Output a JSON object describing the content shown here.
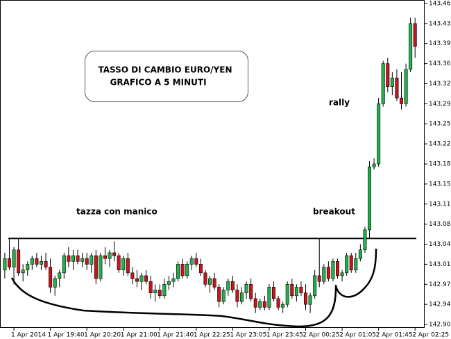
{
  "chart_data": {
    "type": "candlestick",
    "title": "TASSO DI CAMBIO EURO/YEN",
    "subtitle": "GRAFICO A 5 MINUTI",
    "annotations": [
      "rally",
      "tazza con manico",
      "breakout"
    ],
    "categories": [
      null,
      null,
      "1 Apr 2014",
      null,
      null,
      null,
      null,
      null,
      null,
      null,
      "1 Apr 19:40",
      null,
      null,
      null,
      null,
      null,
      null,
      null,
      "1 Apr 20:20",
      null,
      null,
      null,
      null,
      null,
      null,
      null,
      "1 Apr 21:00",
      null,
      null,
      null,
      null,
      null,
      null,
      null,
      "1 Apr 21:40",
      null,
      null,
      null,
      null,
      null,
      null,
      null,
      "1 Apr 22:25",
      null,
      null,
      null,
      null,
      null,
      null,
      null,
      "1 Apr 23:05",
      null,
      null,
      null,
      null,
      null,
      null,
      null,
      "1 Apr 23:45",
      null,
      null,
      null,
      null,
      null,
      null,
      null,
      "2 Apr 00:25",
      null,
      null,
      null,
      null,
      null,
      null,
      null,
      "2 Apr 01:05",
      null,
      null,
      null,
      null,
      null,
      null,
      null,
      "2 Apr 01:45",
      null,
      null,
      null,
      null,
      null,
      null,
      null,
      "2 Apr 02:25"
    ],
    "open": [
      143.0,
      143.02,
      143.005,
      143.035,
      142.995,
      143.0,
      143.01,
      143.02,
      143.01,
      143.015,
      143.005,
      142.97,
      142.985,
      142.995,
      143.025,
      143.015,
      143.025,
      143.015,
      143.02,
      143.01,
      143.025,
      142.985,
      143.025,
      143.02,
      143.03,
      143.025,
      143.0,
      143.02,
      142.995,
      142.985,
      142.98,
      142.99,
      142.98,
      142.96,
      142.965,
      142.955,
      142.975,
      142.98,
      142.985,
      143.01,
      142.99,
      143.01,
      143.02,
      143.01,
      142.995,
      142.975,
      142.985,
      142.97,
      142.945,
      142.965,
      142.98,
      142.965,
      142.945,
      142.96,
      142.975,
      142.95,
      142.935,
      142.945,
      142.935,
      142.97,
      142.95,
      142.935,
      142.94,
      142.975,
      142.955,
      142.97,
      142.96,
      142.94,
      142.955,
      142.99,
      142.98,
      143.005,
      142.985,
      143.015,
      142.99,
      142.995,
      143.025,
      143.0,
      143.02,
      143.035,
      143.07,
      143.18,
      143.185,
      143.29,
      143.36,
      143.32,
      143.335,
      143.3,
      143.29,
      143.35,
      143.43
    ],
    "high": [
      143.03,
      143.055,
      143.04,
      143.055,
      143.01,
      143.015,
      143.025,
      143.03,
      143.025,
      143.03,
      143.02,
      142.99,
      143.0,
      143.03,
      143.04,
      143.035,
      143.035,
      143.03,
      143.03,
      143.03,
      143.035,
      143.03,
      143.04,
      143.035,
      143.05,
      143.03,
      143.025,
      143.03,
      143.005,
      143.0,
      142.995,
      143.0,
      142.99,
      142.975,
      142.975,
      142.985,
      142.99,
      142.995,
      143.015,
      143.02,
      143.015,
      143.025,
      143.03,
      143.02,
      143.0,
      142.99,
      142.995,
      142.975,
      142.97,
      142.985,
      142.99,
      142.975,
      142.97,
      142.98,
      142.985,
      142.96,
      142.95,
      142.955,
      142.975,
      142.98,
      142.955,
      142.945,
      142.98,
      142.985,
      142.975,
      142.98,
      142.975,
      142.96,
      143.0,
      143.055,
      143.01,
      143.015,
      143.02,
      143.02,
      143.0,
      143.03,
      143.03,
      143.03,
      143.045,
      143.075,
      143.19,
      143.195,
      143.3,
      143.365,
      143.37,
      143.345,
      143.35,
      143.345,
      143.36,
      143.44,
      143.44
    ],
    "low": [
      142.985,
      143.0,
      142.975,
      142.99,
      142.98,
      142.99,
      143.0,
      143.005,
      143.0,
      143.0,
      142.96,
      142.955,
      142.97,
      142.985,
      143.005,
      143.0,
      143.01,
      143.005,
      143.0,
      142.995,
      142.975,
      142.98,
      143.01,
      143.005,
      143.015,
      142.995,
      142.99,
      142.99,
      142.975,
      142.97,
      142.965,
      142.975,
      142.95,
      142.945,
      142.95,
      142.95,
      142.965,
      142.97,
      142.98,
      142.985,
      142.985,
      143.0,
      143.005,
      142.99,
      142.97,
      142.96,
      142.965,
      142.935,
      142.94,
      142.955,
      142.96,
      142.935,
      142.94,
      142.95,
      142.945,
      142.925,
      142.93,
      142.93,
      142.93,
      142.945,
      142.93,
      142.925,
      142.935,
      142.95,
      142.945,
      142.955,
      142.93,
      142.925,
      142.95,
      142.97,
      142.975,
      142.98,
      142.98,
      142.985,
      142.98,
      142.99,
      142.995,
      142.995,
      143.015,
      143.03,
      143.055,
      143.175,
      143.18,
      143.285,
      143.31,
      143.305,
      143.295,
      143.28,
      143.285,
      143.345,
      143.37
    ],
    "close": [
      143.02,
      143.005,
      143.035,
      142.995,
      143.0,
      143.01,
      143.02,
      143.01,
      143.015,
      143.005,
      142.97,
      142.985,
      142.995,
      143.025,
      143.015,
      143.025,
      143.015,
      143.02,
      143.01,
      143.025,
      142.985,
      143.025,
      143.02,
      143.03,
      143.025,
      143.0,
      143.02,
      142.995,
      142.985,
      142.98,
      142.99,
      142.98,
      142.96,
      142.965,
      142.955,
      142.975,
      142.98,
      142.985,
      143.01,
      142.99,
      143.01,
      143.02,
      143.01,
      142.995,
      142.975,
      142.985,
      142.97,
      142.945,
      142.965,
      142.98,
      142.965,
      142.945,
      142.96,
      142.975,
      142.95,
      142.935,
      142.945,
      142.935,
      142.97,
      142.95,
      142.935,
      142.94,
      142.975,
      142.955,
      142.97,
      142.96,
      142.94,
      142.955,
      142.99,
      142.98,
      143.005,
      142.985,
      143.015,
      142.99,
      142.995,
      143.025,
      143.0,
      143.02,
      143.035,
      143.07,
      143.18,
      143.185,
      143.29,
      143.36,
      143.32,
      143.335,
      143.3,
      143.29,
      143.35,
      143.43,
      143.39
    ],
    "up_color": "#22b14c",
    "down_color": "#c8141e",
    "hline": 143.055,
    "ylim": [
      142.899,
      143.471
    ],
    "yticks": [
      142.905,
      {
        "value": 142.94,
        "label": "142.940"
      },
      142.975,
      {
        "value": 143.01,
        "label": "143.010"
      },
      143.045,
      {
        "value": 143.08,
        "label": "143.080"
      },
      143.115,
      {
        "value": 143.15,
        "label": "143.150"
      },
      143.185,
      {
        "value": 143.22,
        "label": "143.220"
      },
      143.255,
      {
        "value": 143.29,
        "label": "143.290"
      },
      143.325,
      {
        "value": 143.36,
        "label": "143.360"
      },
      143.395,
      {
        "value": 143.43,
        "label": "143.430"
      },
      143.465
    ]
  }
}
